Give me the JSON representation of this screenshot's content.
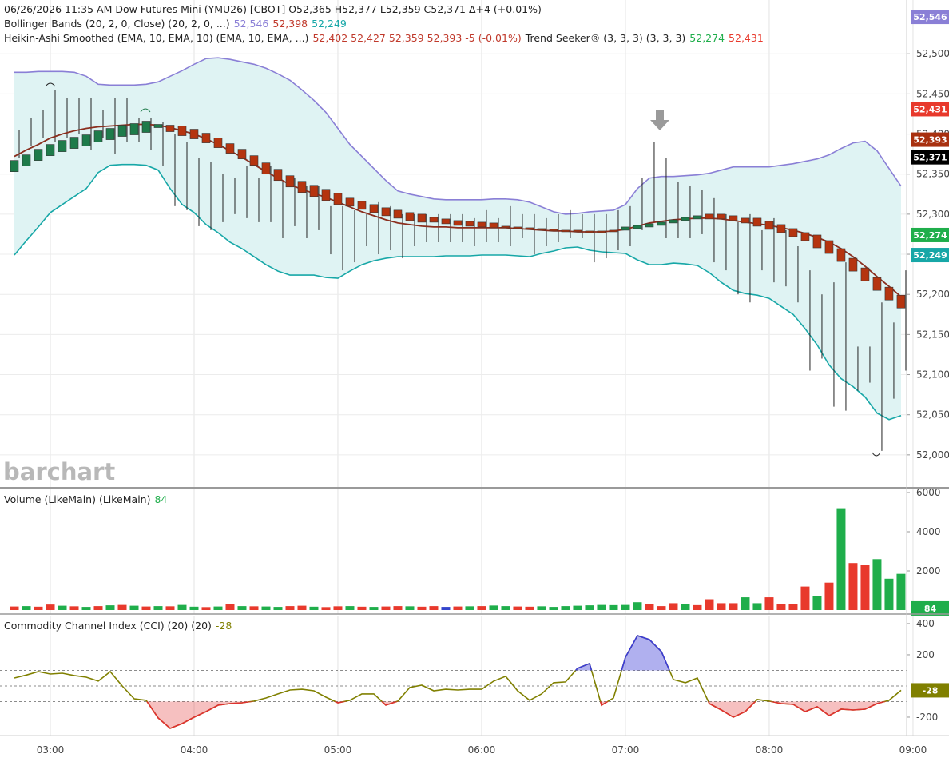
{
  "chart_data": [
    {
      "type": "candlestick",
      "legend": [
        [
          {
            "text": "06/26/2026  11:35 AM  Dow Futures Mini (YMU26) [CBOT]  O52,365  H52,377  L52,359  C52,371  Δ+4 (+0.01%)",
            "color": "#222222"
          }
        ],
        [
          {
            "text": "Bollinger Bands (20, 2, 0, Close)  (20, 2, 0, ...)",
            "color": "#222222"
          },
          {
            "text": "52,546",
            "color": "#8a7fd6"
          },
          {
            "text": "52,398",
            "color": "#c0392b"
          },
          {
            "text": "52,249",
            "color": "#17a7a7"
          }
        ],
        [
          {
            "text": "Heikin-Ashi Smoothed (EMA, 10, EMA, 10)  (EMA, 10, EMA, ...)",
            "color": "#222222"
          },
          {
            "text": "52,402  52,427  52,359  52,393  -5 (-0.01%)",
            "color": "#c0392b"
          },
          {
            "text": "Trend Seeker® (3, 3, 3)  (3, 3, 3)",
            "color": "#222222"
          },
          {
            "text": "52,274",
            "color": "#1fae4b"
          },
          {
            "text": "52,431",
            "color": "#e8392c"
          }
        ]
      ],
      "watermark": "barchart",
      "ylim": [
        51959,
        52567
      ],
      "yticks": [
        {
          "value": 52000,
          "label": "52,000"
        },
        {
          "value": 52050,
          "label": "52,050"
        },
        {
          "value": 52100,
          "label": "52,100"
        },
        {
          "value": 52150,
          "label": "52,150"
        },
        {
          "value": 52200,
          "label": "52,200"
        },
        {
          "value": 52250,
          "label": "52,250"
        },
        {
          "value": 52300,
          "label": "52,300"
        },
        {
          "value": 52350,
          "label": "52,350"
        },
        {
          "value": 52400,
          "label": "52,400"
        },
        {
          "value": 52450,
          "label": "52,450"
        },
        {
          "value": 52500,
          "label": "52,500"
        }
      ],
      "grid": true,
      "heikin_ashi": {
        "up_color": "#1e7b4a",
        "down_color": "#b5340f",
        "open": [
          52353,
          52360,
          52367,
          52373,
          52378,
          52382,
          52385,
          52390,
          52393,
          52397,
          52399,
          52402,
          52408,
          52411,
          52410,
          52406,
          52401,
          52395,
          52388,
          52381,
          52373,
          52364,
          52356,
          52348,
          52341,
          52336,
          52331,
          52326,
          52320,
          52316,
          52312,
          52308,
          52305,
          52302,
          52300,
          52296,
          52294,
          52292,
          52291,
          52290,
          52289,
          52285,
          52284,
          52283,
          52282,
          52281,
          52280,
          52280,
          52279,
          52279,
          52280,
          52280,
          52282,
          52284,
          52286,
          52289,
          52292,
          52294,
          52300,
          52300,
          52298,
          52295,
          52295,
          52291,
          52287,
          52282,
          52277,
          52274,
          52267,
          52257,
          52245,
          52233,
          52221,
          52209,
          52199
        ],
        "close": [
          52367,
          52374,
          52381,
          52387,
          52392,
          52396,
          52399,
          52404,
          52407,
          52411,
          52413,
          52416,
          52412,
          52403,
          52398,
          52394,
          52389,
          52383,
          52376,
          52369,
          52361,
          52350,
          52342,
          52334,
          52327,
          52322,
          52317,
          52312,
          52310,
          52306,
          52302,
          52298,
          52295,
          52292,
          52290,
          52290,
          52288,
          52286,
          52285,
          52284,
          52283,
          52283,
          52282,
          52281,
          52280,
          52279,
          52278,
          52278,
          52277,
          52277,
          52278,
          52284,
          52286,
          52288,
          52290,
          52293,
          52296,
          52298,
          52294,
          52294,
          52292,
          52289,
          52285,
          52281,
          52277,
          52272,
          52267,
          52258,
          52251,
          52241,
          52229,
          52217,
          52205,
          52193,
          52183
        ]
      },
      "price_bars": {
        "color": "#222222",
        "high": [
          52405,
          52420,
          52430,
          52455,
          52445,
          52445,
          52445,
          52430,
          52445,
          52445,
          52420,
          52420,
          52415,
          52400,
          52390,
          52370,
          52365,
          52350,
          52345,
          52360,
          52345,
          52360,
          52340,
          52345,
          52335,
          52335,
          52310,
          52310,
          52305,
          52300,
          52315,
          52310,
          52300,
          52300,
          52300,
          52300,
          52300,
          52300,
          52295,
          52305,
          52295,
          52310,
          52300,
          52300,
          52295,
          52300,
          52305,
          52300,
          52300,
          52300,
          52305,
          52310,
          52345,
          52390,
          52370,
          52340,
          52335,
          52330,
          52320,
          52300,
          52290,
          52300,
          52280,
          52295,
          52280,
          52260,
          52230,
          52200,
          52215,
          52240,
          52135,
          52135,
          52190,
          52165,
          52230
        ],
        "low": [
          52370,
          52385,
          52395,
          52390,
          52395,
          52400,
          52380,
          52395,
          52375,
          52390,
          52390,
          52380,
          52360,
          52310,
          52305,
          52285,
          52280,
          52290,
          52300,
          52295,
          52290,
          52290,
          52270,
          52285,
          52270,
          52280,
          52250,
          52230,
          52240,
          52260,
          52250,
          52255,
          52245,
          52260,
          52265,
          52265,
          52265,
          52265,
          52260,
          52265,
          52265,
          52260,
          52270,
          52250,
          52260,
          52265,
          52270,
          52270,
          52240,
          52245,
          52255,
          52260,
          52280,
          52290,
          52270,
          52270,
          52270,
          52275,
          52240,
          52230,
          52200,
          52190,
          52230,
          52215,
          52210,
          52190,
          52105,
          52120,
          52060,
          52055,
          52080,
          52090,
          52005,
          52070,
          52105
        ]
      },
      "bollinger": {
        "fill": "#dff3f3",
        "upper": {
          "color": "#8a7fd6",
          "values": [
            52477,
            52477,
            52478,
            52478,
            52478,
            52477,
            52472,
            52462,
            52461,
            52461,
            52461,
            52462,
            52465,
            52472,
            52479,
            52487,
            52494,
            52495,
            52493,
            52490,
            52487,
            52482,
            52475,
            52467,
            52455,
            52442,
            52427,
            52407,
            52387,
            52372,
            52357,
            52342,
            52329,
            52325,
            52322,
            52319,
            52318,
            52318,
            52318,
            52318,
            52319,
            52319,
            52318,
            52315,
            52309,
            52303,
            52300,
            52301,
            52303,
            52304,
            52305,
            52312,
            52332,
            52345,
            52347,
            52347,
            52348,
            52349,
            52351,
            52355,
            52359,
            52359,
            52359,
            52359,
            52361,
            52363,
            52366,
            52369,
            52374,
            52382,
            52389,
            52391,
            52379,
            52357,
            52335
          ]
        },
        "middle": {
          "color": "#8b2e1e",
          "values": [
            52372,
            52380,
            52387,
            52395,
            52400,
            52404,
            52407,
            52409,
            52410,
            52411,
            52412,
            52412,
            52411,
            52408,
            52404,
            52400,
            52394,
            52387,
            52379,
            52371,
            52362,
            52353,
            52345,
            52337,
            52331,
            52326,
            52321,
            52315,
            52309,
            52303,
            52298,
            52293,
            52289,
            52287,
            52285,
            52284,
            52284,
            52283,
            52283,
            52283,
            52283,
            52283,
            52282,
            52281,
            52280,
            52279,
            52279,
            52278,
            52278,
            52278,
            52279,
            52281,
            52285,
            52289,
            52291,
            52293,
            52294,
            52295,
            52295,
            52294,
            52292,
            52290,
            52288,
            52286,
            52283,
            52280,
            52276,
            52271,
            52265,
            52257,
            52247,
            52235,
            52222,
            52210,
            52197
          ]
        },
        "lower": {
          "color": "#17a7a7",
          "values": [
            52249,
            52267,
            52284,
            52302,
            52312,
            52322,
            52332,
            52352,
            52361,
            52362,
            52362,
            52361,
            52355,
            52332,
            52312,
            52302,
            52287,
            52277,
            52265,
            52257,
            52247,
            52237,
            52229,
            52224,
            52224,
            52224,
            52221,
            52220,
            52229,
            52237,
            52242,
            52245,
            52247,
            52247,
            52247,
            52247,
            52248,
            52248,
            52248,
            52249,
            52249,
            52249,
            52248,
            52247,
            52251,
            52254,
            52258,
            52259,
            52255,
            52253,
            52252,
            52251,
            52243,
            52237,
            52237,
            52239,
            52238,
            52236,
            52227,
            52215,
            52205,
            52201,
            52199,
            52195,
            52185,
            52175,
            52157,
            52137,
            52112,
            52095,
            52085,
            52072,
            52052,
            52044,
            52049
          ]
        }
      },
      "badges": [
        {
          "value": 52546,
          "label": "52,546",
          "color": "#8a7fd6"
        },
        {
          "value": 52431,
          "label": "52,431",
          "color": "#e8392c"
        },
        {
          "value": 52393,
          "label": "52,393",
          "color": "#a8300f"
        },
        {
          "value": 52371,
          "label": "52,371",
          "color": "#000000"
        },
        {
          "value": 52274,
          "label": "52,274",
          "color": "#1fae4b"
        },
        {
          "value": 52249,
          "label": "52,249",
          "color": "#17a7a7"
        }
      ]
    },
    {
      "type": "bar",
      "legend": [
        [
          {
            "text": "Volume (LikeMain)  (LikeMain)",
            "color": "#222222"
          },
          {
            "text": "84",
            "color": "#1fae4b"
          }
        ]
      ],
      "ylim": [
        -204,
        6163
      ],
      "yticks": [
        2000,
        4000,
        6000
      ],
      "values": [
        180,
        200,
        170,
        280,
        220,
        190,
        160,
        200,
        240,
        260,
        220,
        180,
        200,
        190,
        260,
        170,
        150,
        180,
        320,
        200,
        190,
        180,
        160,
        200,
        220,
        170,
        150,
        190,
        200,
        170,
        160,
        180,
        200,
        190,
        170,
        200,
        160,
        180,
        190,
        200,
        230,
        200,
        180,
        170,
        190,
        160,
        200,
        220,
        240,
        260,
        250,
        260,
        400,
        300,
        200,
        350,
        300,
        250,
        550,
        350,
        350,
        650,
        350,
        650,
        300,
        300,
        1200,
        700,
        1400,
        5200,
        2400,
        2300,
        2600,
        1600,
        1850
      ],
      "colors": [
        "#e8392c",
        "#1fae4b",
        "#e8392c",
        "#e8392c",
        "#1fae4b",
        "#e8392c",
        "#1fae4b",
        "#e8392c",
        "#1fae4b",
        "#e8392c",
        "#1fae4b",
        "#e8392c",
        "#1fae4b",
        "#e8392c",
        "#1fae4b",
        "#1fae4b",
        "#e8392c",
        "#1fae4b",
        "#e8392c",
        "#1fae4b",
        "#e8392c",
        "#1fae4b",
        "#1fae4b",
        "#e8392c",
        "#e8392c",
        "#1fae4b",
        "#e8392c",
        "#e8392c",
        "#1fae4b",
        "#e8392c",
        "#1fae4b",
        "#e8392c",
        "#e8392c",
        "#1fae4b",
        "#e8392c",
        "#e8392c",
        "#3344cc",
        "#e8392c",
        "#1fae4b",
        "#e8392c",
        "#1fae4b",
        "#1fae4b",
        "#e8392c",
        "#e8392c",
        "#1fae4b",
        "#1fae4b",
        "#1fae4b",
        "#1fae4b",
        "#1fae4b",
        "#1fae4b",
        "#1fae4b",
        "#1fae4b",
        "#1fae4b",
        "#e8392c",
        "#e8392c",
        "#e8392c",
        "#1fae4b",
        "#e8392c",
        "#e8392c",
        "#e8392c",
        "#e8392c",
        "#1fae4b",
        "#1fae4b",
        "#e8392c",
        "#e8392c",
        "#e8392c",
        "#e8392c",
        "#1fae4b",
        "#e8392c",
        "#1fae4b",
        "#e8392c",
        "#e8392c",
        "#1fae4b",
        "#1fae4b",
        "#1fae4b"
      ],
      "badges": [
        {
          "value": 84,
          "label": "84",
          "color": "#1fae4b"
        }
      ]
    },
    {
      "type": "line",
      "legend": [
        [
          {
            "text": "Commodity Channel Index (CCI) (20)  (20)",
            "color": "#222222"
          },
          {
            "text": "-28",
            "color": "#808000"
          }
        ]
      ],
      "ylim": [
        -318,
        451
      ],
      "yticks": [
        400,
        200,
        -200
      ],
      "levels": [
        100,
        0,
        -100
      ],
      "color": "#808000",
      "overbought_color": "#3a3ad8",
      "oversold_color": "#e03030",
      "values": [
        51,
        70,
        92,
        77,
        82,
        67,
        56,
        31,
        92,
        0,
        -82,
        -92,
        -205,
        -272,
        -241,
        -200,
        -164,
        -123,
        -113,
        -108,
        -97,
        -77,
        -51,
        -26,
        -21,
        -31,
        -72,
        -108,
        -92,
        -51,
        -51,
        -123,
        -97,
        -10,
        5,
        -31,
        -21,
        -26,
        -21,
        -21,
        31,
        62,
        -31,
        -92,
        -51,
        21,
        26,
        113,
        144,
        -123,
        -77,
        185,
        323,
        297,
        221,
        41,
        21,
        51,
        -113,
        -154,
        -200,
        -164,
        -87,
        -97,
        -113,
        -118,
        -164,
        -133,
        -190,
        -149,
        -154,
        -149,
        -113,
        -92,
        -28
      ],
      "badges": [
        {
          "value": -28,
          "label": "-28",
          "color": "#808000"
        }
      ],
      "xlim": [
        -1.2,
        74.47
      ],
      "xticks": [
        {
          "value": 3,
          "label": "03:00"
        },
        {
          "value": 15,
          "label": "04:00"
        },
        {
          "value": 27,
          "label": "05:00"
        },
        {
          "value": 39,
          "label": "06:00"
        },
        {
          "value": 51,
          "label": "07:00"
        },
        {
          "value": 63,
          "label": "08:00"
        },
        {
          "value": 75,
          "label": "09:00"
        }
      ]
    }
  ]
}
